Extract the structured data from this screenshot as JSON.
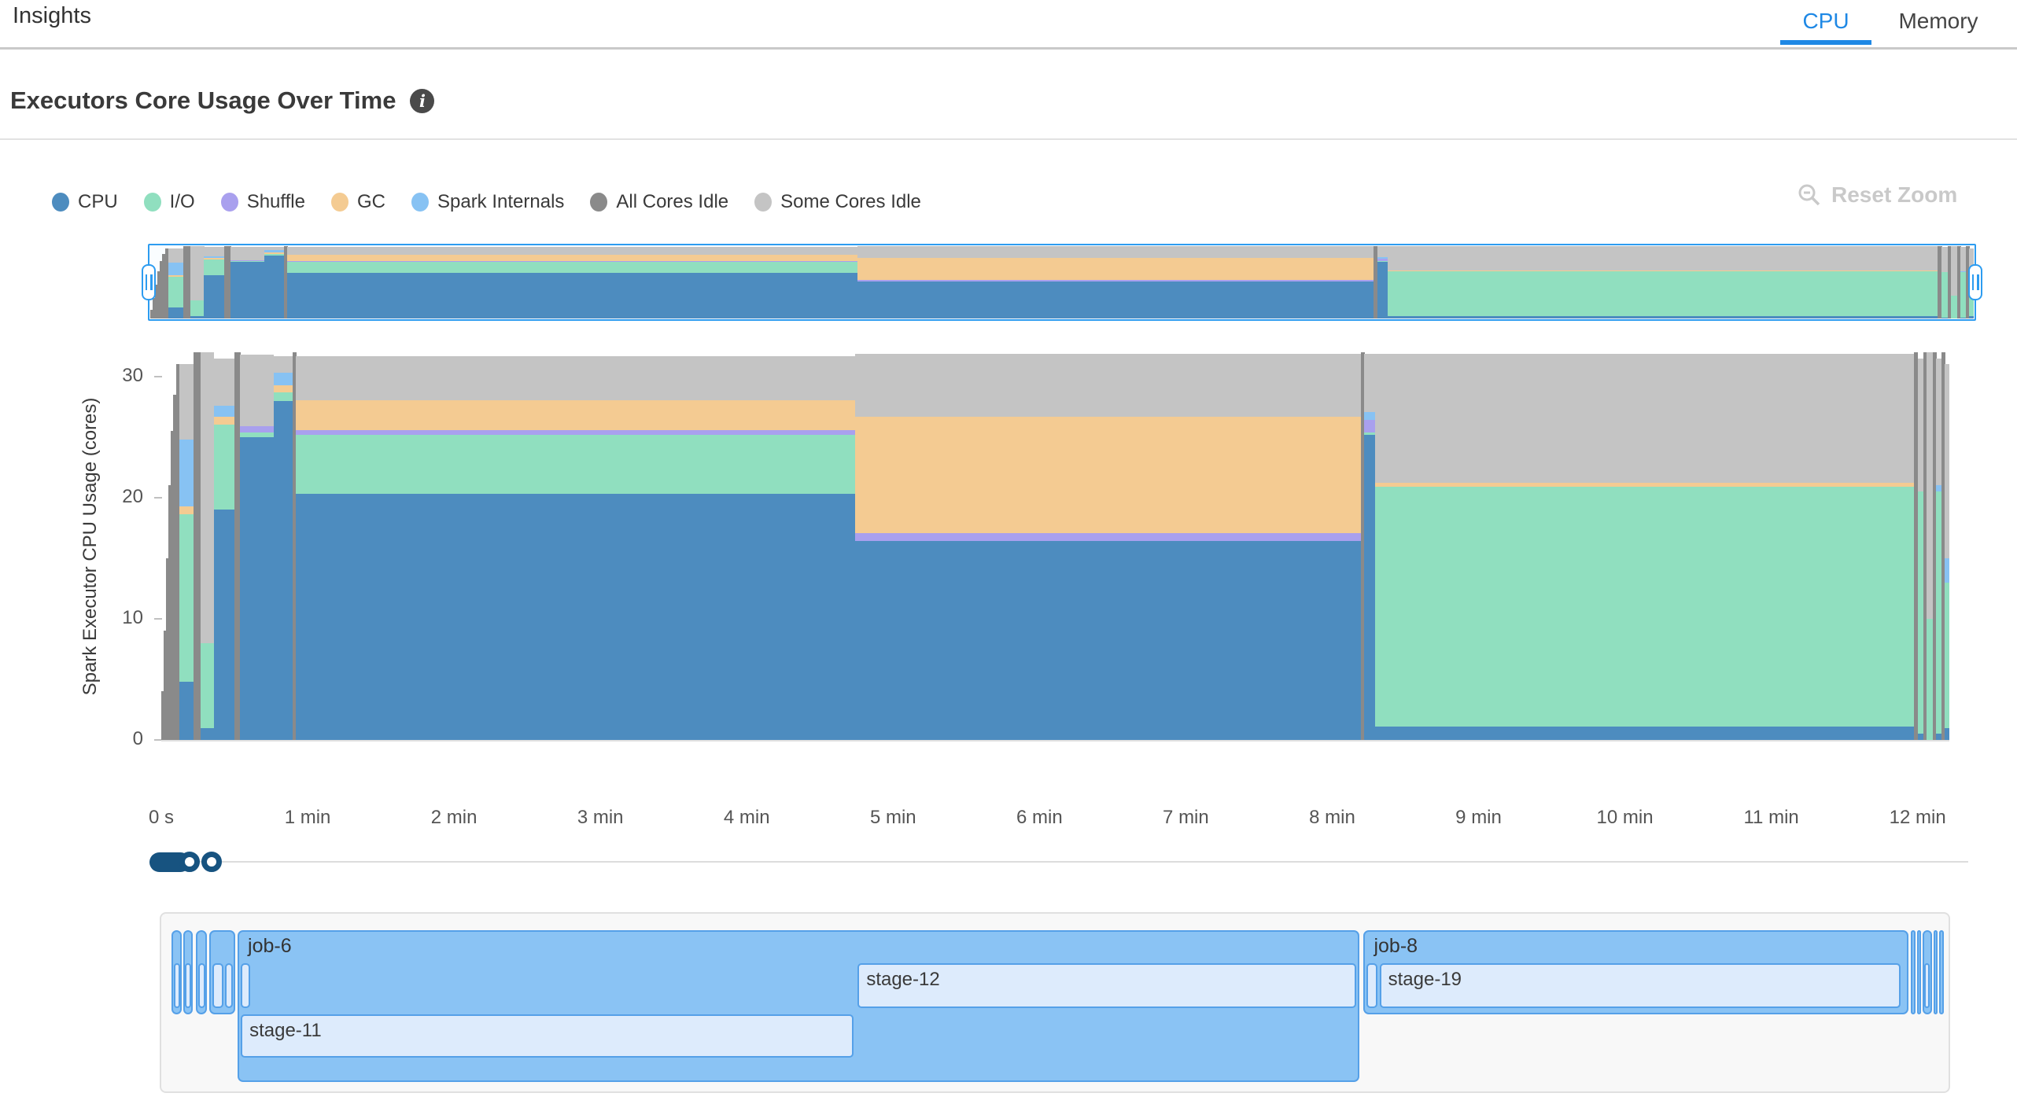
{
  "page": {
    "title": "Insights"
  },
  "tabs": {
    "cpu": "CPU",
    "memory": "Memory",
    "active": "CPU"
  },
  "section": {
    "heading": "Executors Core Usage Over Time"
  },
  "toolbar": {
    "reset_zoom_label": "Reset Zoom"
  },
  "colors": {
    "tab_active": "#1e88e5",
    "brush_border": "#2d9cf0",
    "slider": "#175380",
    "job_fill": "#8ac3f4",
    "job_border": "#55a0e8",
    "stage_fill": "#ddebfc",
    "disabled_text": "#c9c9c9"
  },
  "chart_data": {
    "type": "area",
    "title": "Executors Core Usage Over Time",
    "xlabel": "",
    "ylabel": "Spark Executor CPU Usage (cores)",
    "ylim": [
      0,
      32
    ],
    "t_max_seconds": 733,
    "grid": false,
    "legend_position": "top-left",
    "y_ticks": [
      0,
      10,
      20,
      30
    ],
    "x_ticks": [
      {
        "label": "0 s",
        "t": 0
      },
      {
        "label": "1 min",
        "t": 60
      },
      {
        "label": "2 min",
        "t": 120
      },
      {
        "label": "3 min",
        "t": 180
      },
      {
        "label": "4 min",
        "t": 240
      },
      {
        "label": "5 min",
        "t": 300
      },
      {
        "label": "6 min",
        "t": 360
      },
      {
        "label": "7 min",
        "t": 420
      },
      {
        "label": "8 min",
        "t": 480
      },
      {
        "label": "9 min",
        "t": 540
      },
      {
        "label": "10 min",
        "t": 600
      },
      {
        "label": "11 min",
        "t": 660
      },
      {
        "label": "12 min",
        "t": 720
      }
    ],
    "categories": [
      {
        "key": "cpu",
        "label": "CPU",
        "color": "#4d8cbf"
      },
      {
        "key": "io",
        "label": "I/O",
        "color": "#90dfbf"
      },
      {
        "key": "shuffle",
        "label": "Shuffle",
        "color": "#a9a0ee"
      },
      {
        "key": "gc",
        "label": "GC",
        "color": "#f4cb92"
      },
      {
        "key": "spark-internals",
        "label": "Spark Internals",
        "color": "#87c2f3"
      },
      {
        "key": "all-cores-idle",
        "label": "All Cores Idle",
        "color": "#8a8a8a"
      },
      {
        "key": "some-cores-idle",
        "label": "Some Cores Idle",
        "color": "#c4c4c4"
      }
    ],
    "segments": [
      {
        "t": [
          0,
          1
        ],
        "v": [
          0,
          0,
          0,
          0,
          0,
          4,
          0
        ]
      },
      {
        "t": [
          1,
          2
        ],
        "v": [
          0,
          0,
          0,
          0,
          0,
          9,
          0
        ]
      },
      {
        "t": [
          2,
          3
        ],
        "v": [
          0,
          0,
          0,
          0,
          0,
          15,
          0
        ]
      },
      {
        "t": [
          3,
          4
        ],
        "v": [
          0,
          0,
          0,
          0,
          0,
          21,
          0
        ]
      },
      {
        "t": [
          4,
          5
        ],
        "v": [
          0,
          0,
          0,
          0,
          0,
          25.5,
          0
        ]
      },
      {
        "t": [
          5,
          6.2
        ],
        "v": [
          0,
          0,
          0,
          0,
          0,
          28.5,
          0
        ]
      },
      {
        "t": [
          6.2,
          7.4
        ],
        "v": [
          0,
          0,
          0,
          0,
          0,
          31,
          0
        ]
      },
      {
        "t": [
          7.4,
          13.5
        ],
        "v": [
          4.8,
          13.8,
          0,
          0.7,
          5.5,
          0,
          6.2
        ]
      },
      {
        "t": [
          13.5,
          16.1
        ],
        "v": [
          0,
          0,
          0,
          0,
          0,
          32,
          0
        ]
      },
      {
        "t": [
          16.1,
          21.6
        ],
        "v": [
          1,
          7,
          0,
          0,
          0,
          0,
          24
        ]
      },
      {
        "t": [
          21.6,
          30
        ],
        "v": [
          19,
          7,
          0,
          0.7,
          0.9,
          0,
          3.9
        ]
      },
      {
        "t": [
          30,
          32.3
        ],
        "v": [
          0,
          0,
          0,
          0,
          0,
          32,
          0
        ]
      },
      {
        "t": [
          32.3,
          46.1
        ],
        "v": [
          25,
          0.4,
          0.5,
          0,
          0,
          0,
          5.9
        ]
      },
      {
        "t": [
          46.1,
          53.9
        ],
        "v": [
          28,
          0.7,
          0,
          0.6,
          1,
          0,
          1.4
        ]
      },
      {
        "t": [
          53.9,
          55.2
        ],
        "v": [
          0,
          0,
          0,
          0,
          0,
          32,
          0
        ]
      },
      {
        "t": [
          55.2,
          284.5
        ],
        "v": [
          20.3,
          4.9,
          0.35,
          2.5,
          0,
          0,
          3.6
        ]
      },
      {
        "t": [
          284.5,
          491.9
        ],
        "v": [
          16.4,
          0,
          0.7,
          9.6,
          0,
          0,
          5.2
        ]
      },
      {
        "t": [
          491.9,
          493.3
        ],
        "v": [
          0,
          0,
          0,
          0,
          0,
          32,
          0
        ]
      },
      {
        "t": [
          493.3,
          497.7
        ],
        "v": [
          25.2,
          0.2,
          1,
          0,
          0.7,
          0,
          4.8
        ]
      },
      {
        "t": [
          497.7,
          718.7
        ],
        "v": [
          1.1,
          19.8,
          0,
          0.35,
          0,
          0,
          10.6
        ]
      },
      {
        "t": [
          718.7,
          720.1
        ],
        "v": [
          0,
          0,
          0,
          0,
          0,
          32,
          0
        ]
      },
      {
        "t": [
          720.1,
          722.6
        ],
        "v": [
          0.5,
          20,
          0,
          0,
          0,
          0,
          11
        ]
      },
      {
        "t": [
          722.6,
          723.9
        ],
        "v": [
          0,
          0,
          0,
          0,
          0,
          32,
          0
        ]
      },
      {
        "t": [
          723.9,
          726.4
        ],
        "v": [
          0,
          10,
          0,
          0,
          0,
          0,
          22
        ]
      },
      {
        "t": [
          726.4,
          727.7
        ],
        "v": [
          0,
          0,
          0,
          0,
          0,
          32,
          0
        ]
      },
      {
        "t": [
          727.7,
          730
        ],
        "v": [
          0.5,
          20,
          0,
          0,
          0.5,
          0,
          10.5
        ]
      },
      {
        "t": [
          730,
          731.2
        ],
        "v": [
          0,
          0,
          0,
          0,
          0,
          32,
          0
        ]
      },
      {
        "t": [
          731.2,
          733
        ],
        "v": [
          1,
          12,
          0,
          0,
          2,
          0,
          16
        ]
      }
    ]
  },
  "timeline": {
    "jobs": [
      {
        "label": "",
        "t0": 4.2,
        "t1": 8.4,
        "tall": false,
        "stages": [
          {
            "label": "",
            "t0": 5.0,
            "t1": 7.6,
            "row": 0
          }
        ]
      },
      {
        "label": "",
        "t0": 9.0,
        "t1": 12.9,
        "tall": false,
        "stages": [
          {
            "label": "",
            "t0": 9.8,
            "t1": 12.2,
            "row": 0
          }
        ]
      },
      {
        "label": "",
        "t0": 14.2,
        "t1": 18.7,
        "tall": false,
        "stages": [
          {
            "label": "",
            "t0": 15.0,
            "t1": 18.0,
            "row": 0
          }
        ]
      },
      {
        "label": "",
        "t0": 19.7,
        "t1": 30.3,
        "tall": false,
        "stages": [
          {
            "label": "",
            "t0": 21.0,
            "t1": 25.5,
            "row": 0
          },
          {
            "label": "",
            "t0": 26.1,
            "t1": 29.4,
            "row": 0
          }
        ]
      },
      {
        "label": "job-6",
        "t0": 31.3,
        "t1": 491.3,
        "tall": true,
        "stages": [
          {
            "label": "",
            "t0": 32.6,
            "t1": 36.5,
            "row": 0
          },
          {
            "label": "stage-12",
            "t0": 285.5,
            "t1": 490.0,
            "row": 0
          },
          {
            "label": "stage-11",
            "t0": 32.6,
            "t1": 283.9,
            "row": 1
          }
        ]
      },
      {
        "label": "job-8",
        "t0": 492.9,
        "t1": 716.1,
        "tall": false,
        "stages": [
          {
            "label": "",
            "t0": 494.2,
            "t1": 498.4,
            "row": 0
          },
          {
            "label": "stage-19",
            "t0": 499.4,
            "t1": 712.9,
            "row": 0
          }
        ]
      },
      {
        "label": "",
        "t0": 717.1,
        "t1": 719.0,
        "tall": false,
        "stages": []
      },
      {
        "label": "",
        "t0": 719.7,
        "t1": 721.3,
        "tall": false,
        "stages": []
      },
      {
        "label": "",
        "t0": 721.9,
        "t1": 725.8,
        "tall": false,
        "stages": [
          {
            "label": "",
            "t0": 722.6,
            "t1": 725.0,
            "row": 0
          }
        ]
      },
      {
        "label": "",
        "t0": 726.5,
        "t1": 728.1,
        "tall": false,
        "stages": []
      },
      {
        "label": "",
        "t0": 728.7,
        "t1": 730.6,
        "tall": false,
        "stages": []
      }
    ]
  }
}
